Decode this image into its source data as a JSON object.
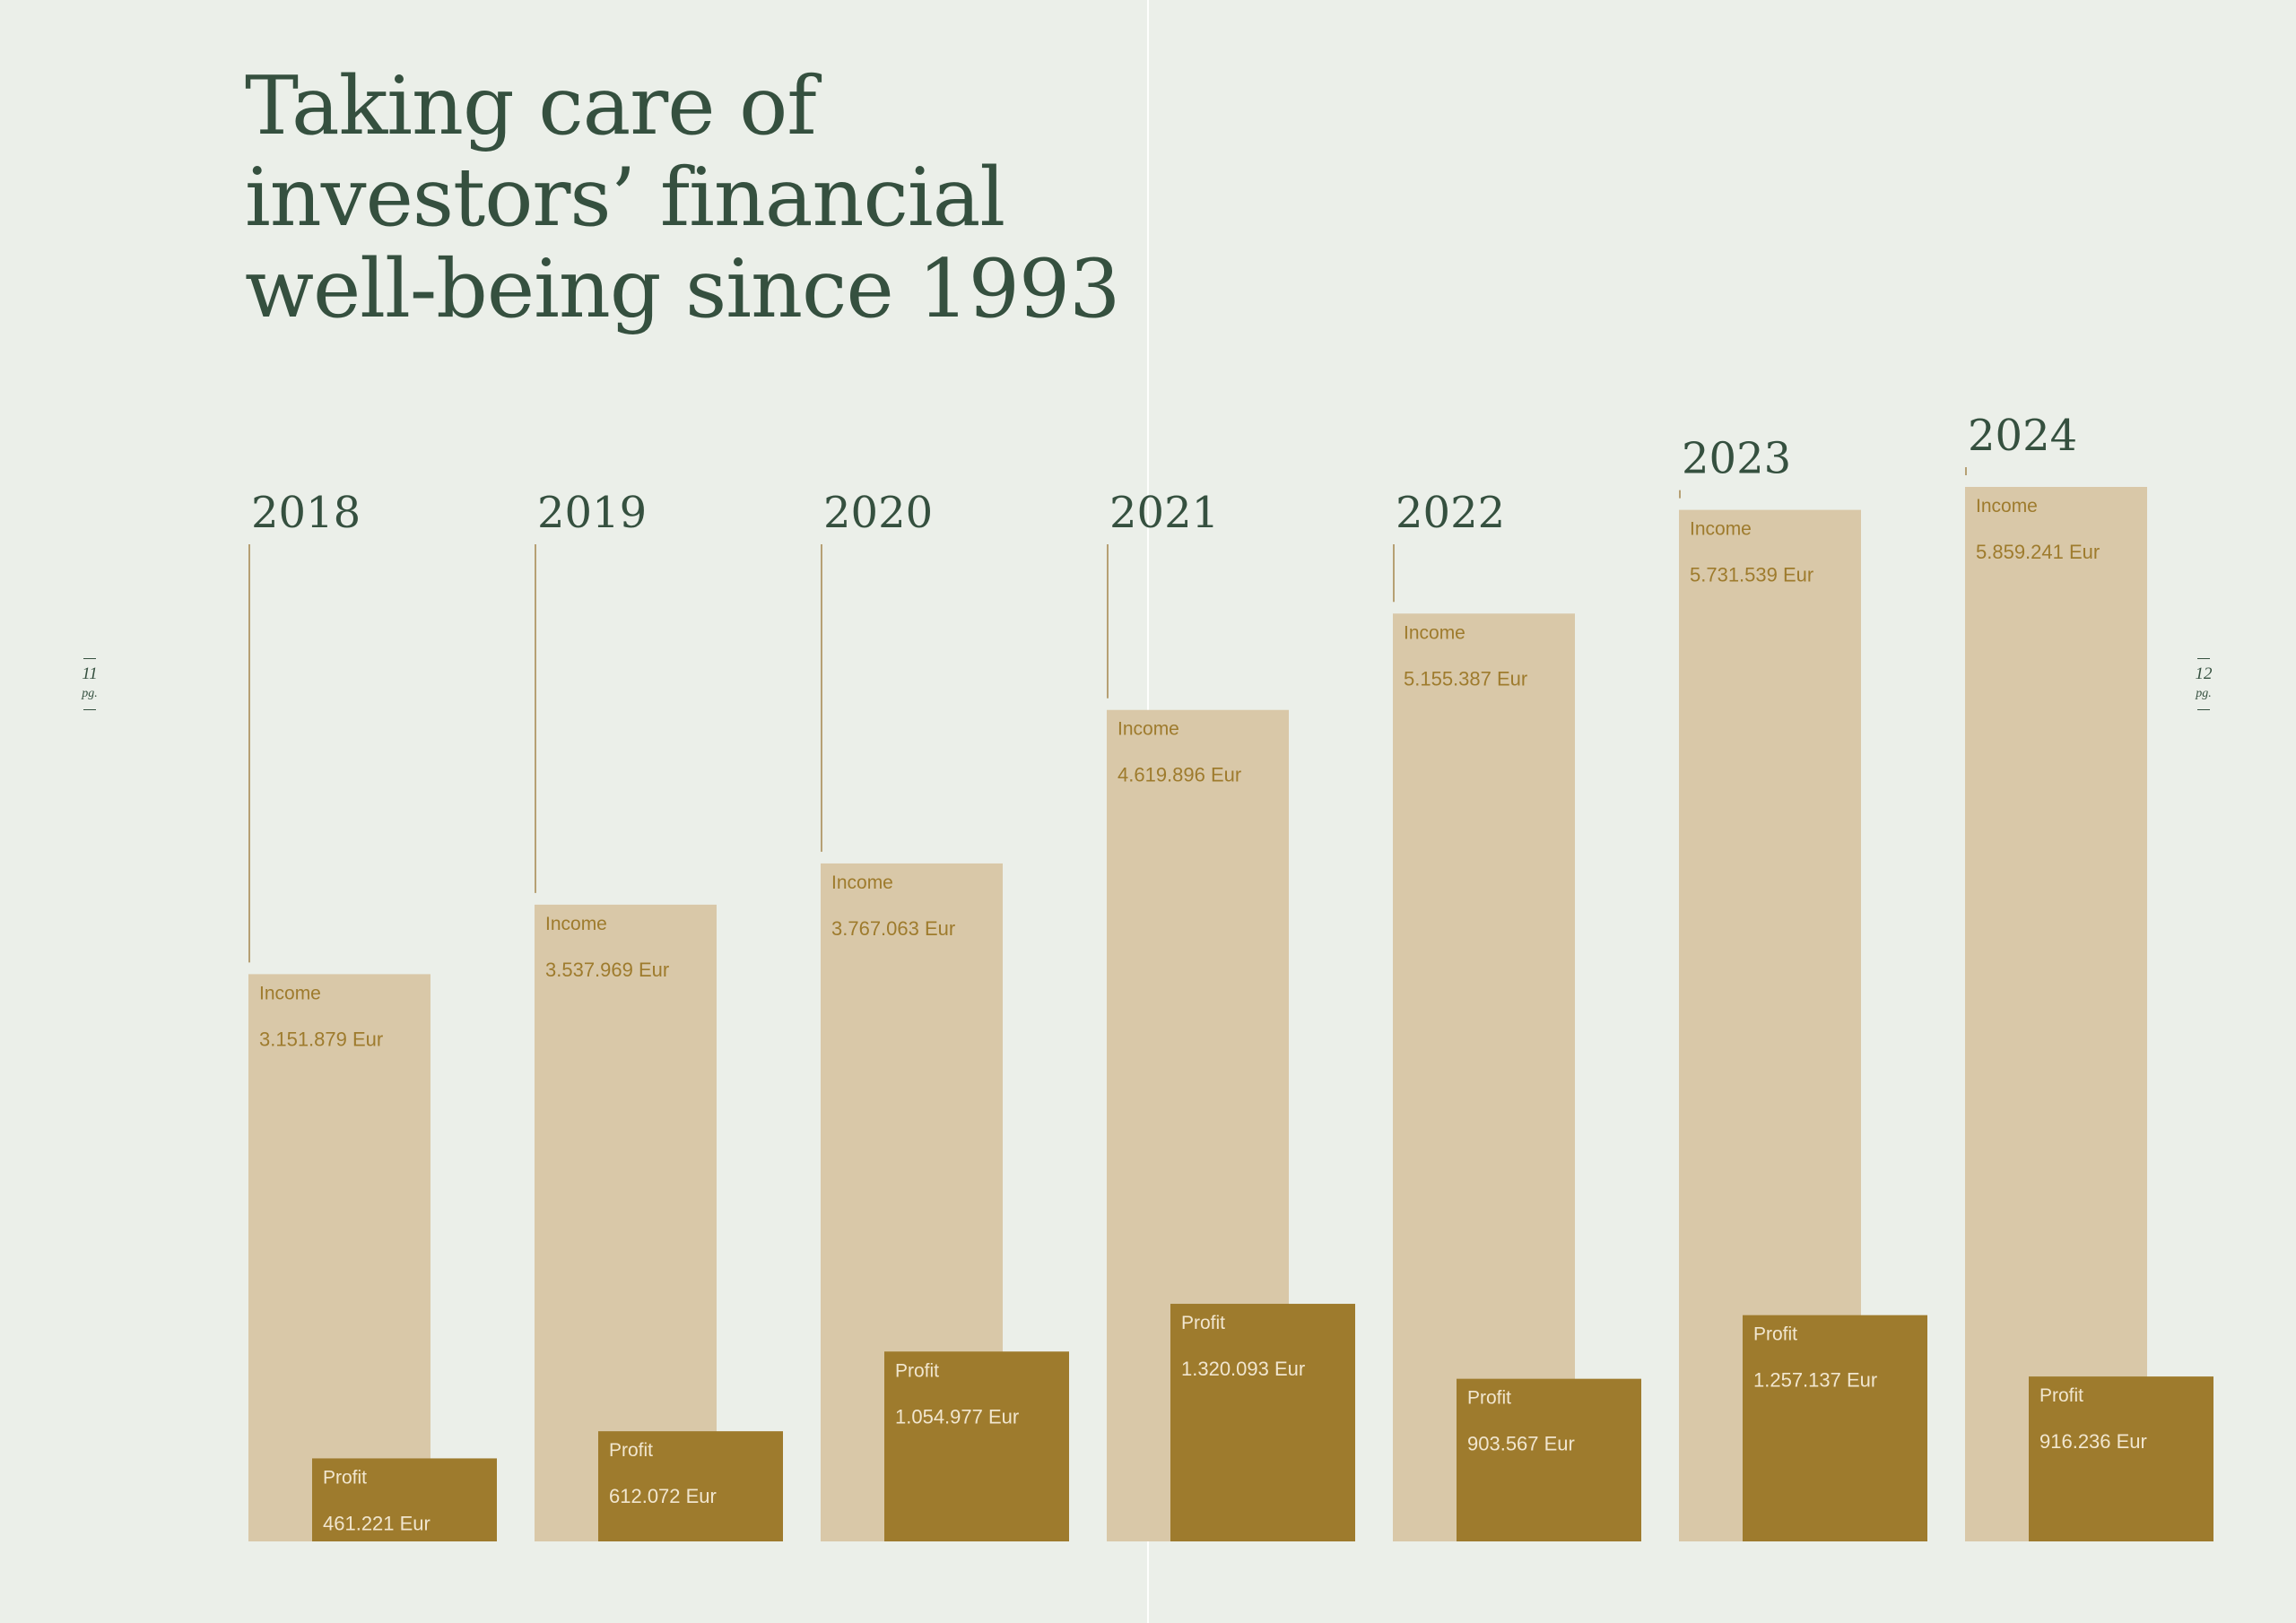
{
  "title_lines": [
    "Taking care of",
    "investors’ financial",
    "well-being since 1993"
  ],
  "page_left": {
    "number": "11",
    "abbr": "pg."
  },
  "page_right": {
    "number": "12",
    "abbr": "pg."
  },
  "colors": {
    "background": "#ebefe9",
    "income": "#d9c8a8",
    "profit": "#9e7b2d",
    "income_text": "#9e7b2d",
    "profit_text": "#f1e6cf",
    "heading": "#35503f",
    "leader_line": "#b6a074"
  },
  "chart_data": {
    "type": "bar",
    "categories": [
      "2018",
      "2019",
      "2020",
      "2021",
      "2022",
      "2023",
      "2024"
    ],
    "series": [
      {
        "name": "Income",
        "values": [
          3151879,
          3537969,
          3767063,
          4619896,
          5155387,
          5731539,
          5859241
        ],
        "labels": [
          "3.151.879 Eur",
          "3.537.969 Eur",
          "3.767.063 Eur",
          "4.619.896 Eur",
          "5.155.387 Eur",
          "5.731.539 Eur",
          "5.859.241 Eur"
        ]
      },
      {
        "name": "Profit",
        "values": [
          461221,
          612072,
          1054977,
          1320093,
          903567,
          1257137,
          916236
        ],
        "labels": [
          "461.221 Eur",
          "612.072 Eur",
          "1.054.977 Eur",
          "1.320.093 Eur",
          "903.567 Eur",
          "1.257.137 Eur",
          "916.236 Eur"
        ]
      }
    ],
    "unit": "Eur"
  }
}
